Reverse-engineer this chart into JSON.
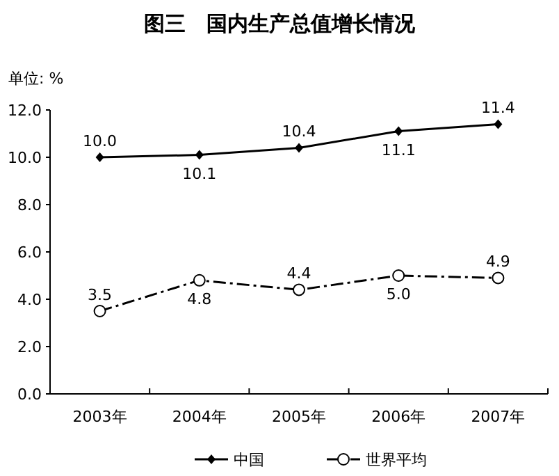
{
  "chart_data": {
    "type": "line",
    "title": "图三　国内生产总值增长情况",
    "ylabel": "单位: %",
    "categories": [
      "2003年",
      "2004年",
      "2005年",
      "2006年",
      "2007年"
    ],
    "series": [
      {
        "name": "中国",
        "color": "#000000",
        "values": [
          10.0,
          10.1,
          10.4,
          11.1,
          11.4
        ],
        "value_labels": [
          "10.0",
          "10.1",
          "10.4",
          "11.1",
          "11.4"
        ],
        "marker": "diamond",
        "line_style": "solid"
      },
      {
        "name": "世界平均",
        "color": "#000000",
        "values": [
          3.5,
          4.8,
          4.4,
          5.0,
          4.9
        ],
        "value_labels": [
          "3.5",
          "4.8",
          "4.4",
          "5.0",
          "4.9"
        ],
        "marker": "circle",
        "line_style": "dashed"
      }
    ],
    "ylim": [
      0,
      12
    ],
    "yticks": [
      {
        "value": 0,
        "label": "0.0"
      },
      {
        "value": 2,
        "label": "2.0"
      },
      {
        "value": 4,
        "label": "4.0"
      },
      {
        "value": 6,
        "label": "6.0"
      },
      {
        "value": 8,
        "label": "8.0"
      },
      {
        "value": 10,
        "label": "10.0"
      },
      {
        "value": 12,
        "label": "12.0"
      }
    ],
    "legend": "bottom",
    "grid": false
  }
}
